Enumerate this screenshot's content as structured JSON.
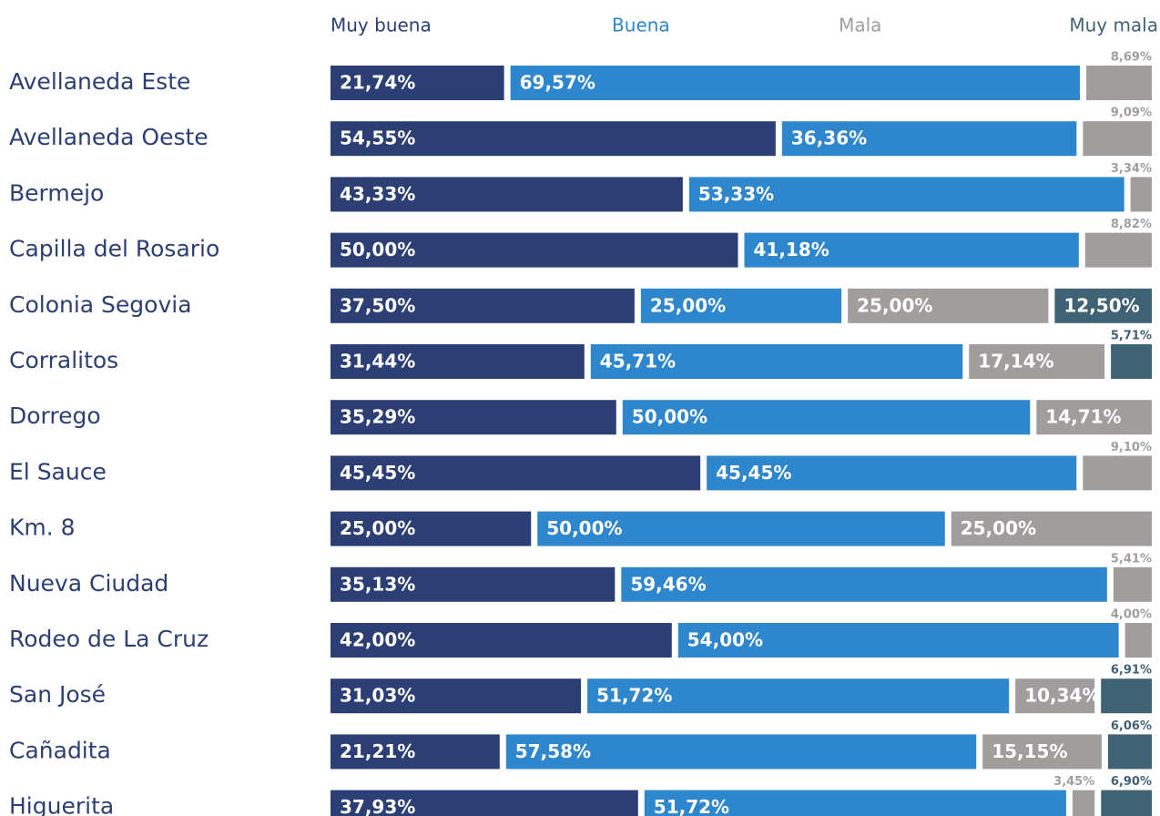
{
  "chart_data": {
    "type": "stacked-bar",
    "orientation": "horizontal",
    "xlim": [
      0,
      100
    ],
    "categories": [
      "Avellaneda Este",
      "Avellaneda Oeste",
      "Bermejo",
      "Capilla del Rosario",
      "Colonia Segovia",
      "Corralitos",
      "Dorrego",
      "El Sauce",
      "Km. 8",
      "Nueva Ciudad",
      "Rodeo de La Cruz",
      "San José",
      "Cañadita",
      "Higuerita"
    ],
    "series": [
      {
        "name": "Muy buena",
        "color": "#2c3f75",
        "values": [
          21.74,
          54.55,
          43.33,
          50.0,
          37.5,
          31.44,
          35.29,
          45.45,
          25.0,
          35.13,
          42.0,
          31.03,
          21.21,
          37.93
        ],
        "value_labels": [
          "21,74%",
          "54,55%",
          "43,33%",
          "50,00%",
          "37,50%",
          "31,44%",
          "35,29%",
          "45,45%",
          "25,00%",
          "35,13%",
          "42,00%",
          "31,03%",
          "21,21%",
          "37,93%"
        ]
      },
      {
        "name": "Buena",
        "color": "#2e86cc",
        "values": [
          69.57,
          36.36,
          53.33,
          41.18,
          25.0,
          45.71,
          50.0,
          45.45,
          50.0,
          59.46,
          54.0,
          51.72,
          57.58,
          51.72
        ],
        "value_labels": [
          "69,57%",
          "36,36%",
          "53,33%",
          "41,18%",
          "25,00%",
          "45,71%",
          "50,00%",
          "45,45%",
          "50,00%",
          "59,46%",
          "54,00%",
          "51,72%",
          "57,58%",
          "51,72%"
        ]
      },
      {
        "name": "Mala",
        "color": "#a19d9c",
        "values": [
          8.69,
          9.09,
          3.34,
          8.82,
          25.0,
          17.14,
          14.71,
          9.1,
          25.0,
          5.41,
          4.0,
          10.34,
          15.15,
          3.45
        ],
        "value_labels": [
          "8,69%",
          "9,09%",
          "3,34%",
          "8,82%",
          "25,00%",
          "17,14%",
          "14,71%",
          "9,10%",
          "25,00%",
          "5,41%",
          "4,00%",
          "10,34%",
          "15,15%",
          "3,45%"
        ]
      },
      {
        "name": "Muy mala",
        "color": "#3f6275",
        "values": [
          null,
          null,
          null,
          null,
          12.5,
          5.71,
          null,
          null,
          null,
          null,
          null,
          6.91,
          6.06,
          6.9
        ],
        "value_labels": [
          null,
          null,
          null,
          null,
          "12,50%",
          "5,71%",
          null,
          null,
          null,
          null,
          null,
          "6,91%",
          "6,06%",
          "6,90%"
        ]
      }
    ]
  }
}
